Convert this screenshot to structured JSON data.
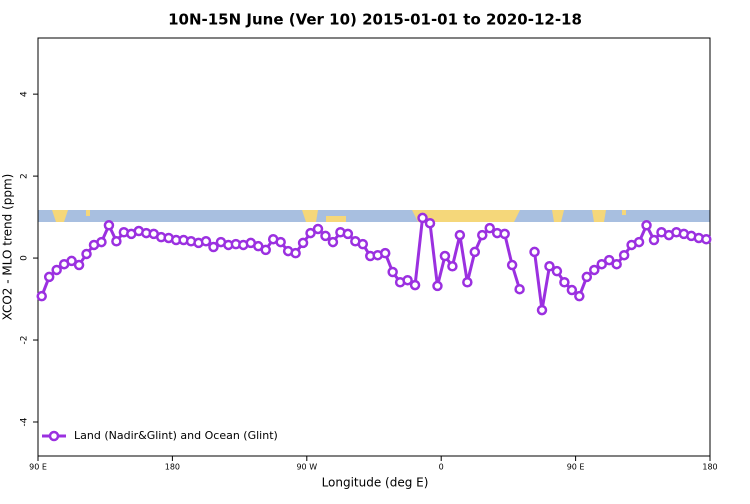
{
  "chart_data": {
    "type": "line",
    "title": "10N-15N June (Ver 10)   2015-01-01 to 2020-12-18",
    "x_label": "Longitude (deg E)",
    "y_label": "XCO2 - MLO trend (ppm)",
    "x": [
      92.5,
      97.5,
      102.5,
      107.5,
      112.5,
      117.5,
      122.5,
      127.5,
      132.5,
      137.5,
      142.5,
      147.5,
      152.5,
      157.5,
      162.5,
      167.5,
      172.5,
      177.5,
      182.5,
      187.5,
      192.5,
      197.5,
      202.5,
      207.5,
      212.5,
      217.5,
      222.5,
      227.5,
      232.5,
      237.5,
      242.5,
      247.5,
      252.5,
      257.5,
      262.5,
      267.5,
      272.5,
      277.5,
      282.5,
      287.5,
      292.5,
      297.5,
      302.5,
      307.5,
      312.5,
      317.5,
      322.5,
      327.5,
      332.5,
      337.5,
      342.5,
      347.5,
      352.5,
      357.5,
      362.5,
      367.5,
      372.5,
      377.5,
      382.5,
      387.5,
      392.5,
      397.5,
      402.5,
      407.5,
      412.5,
      417.5,
      422.5,
      427.5,
      432.5,
      437.5,
      442.5,
      447.5,
      452.5,
      457.5,
      462.5,
      467.5,
      472.5,
      477.5,
      482.5,
      487.5,
      492.5,
      497.5,
      502.5,
      507.5,
      512.5,
      517.5,
      522.5,
      527.5,
      532.5,
      537.5
    ],
    "series": [
      {
        "name": "Land (Nadir&Glint) and Ocean (Glint)",
        "color": "#9b30e0",
        "values": [
          -0.93,
          -0.46,
          -0.29,
          -0.15,
          -0.07,
          -0.17,
          0.1,
          0.32,
          0.39,
          0.8,
          0.41,
          0.63,
          0.59,
          0.66,
          0.61,
          0.59,
          0.51,
          0.49,
          0.44,
          0.44,
          0.41,
          0.37,
          0.41,
          0.27,
          0.39,
          0.32,
          0.34,
          0.32,
          0.37,
          0.29,
          0.2,
          0.46,
          0.39,
          0.17,
          0.12,
          0.37,
          0.61,
          0.71,
          0.54,
          0.39,
          0.63,
          0.59,
          0.41,
          0.34,
          0.05,
          0.07,
          0.12,
          -0.34,
          -0.59,
          -0.54,
          -0.66,
          0.98,
          0.85,
          -0.68,
          0.05,
          -0.2,
          0.56,
          -0.59,
          0.15,
          0.56,
          0.73,
          0.61,
          0.59,
          -0.17,
          -0.76,
          null,
          0.15,
          -1.27,
          -0.2,
          -0.32,
          -0.59,
          -0.78,
          -0.93,
          -0.46,
          -0.29,
          -0.15,
          -0.05,
          -0.15,
          0.07,
          0.32,
          0.39,
          0.8,
          0.44,
          0.63,
          0.56,
          0.63,
          0.59,
          0.54,
          0.49,
          0.46
        ]
      }
    ],
    "xlim": [
      90,
      540
    ],
    "xticks": [
      {
        "value": 90,
        "label": "90 E"
      },
      180,
      {
        "value": 270,
        "label": "90 W"
      },
      {
        "value": 360,
        "label": "0"
      },
      {
        "value": 450,
        "label": "90 E"
      },
      {
        "value": 540,
        "label": "180"
      }
    ],
    "ylim": [
      -4.83,
      5.37
    ],
    "yticks": [
      -4,
      -2,
      0,
      2,
      4
    ],
    "legend": "bottom-left"
  }
}
